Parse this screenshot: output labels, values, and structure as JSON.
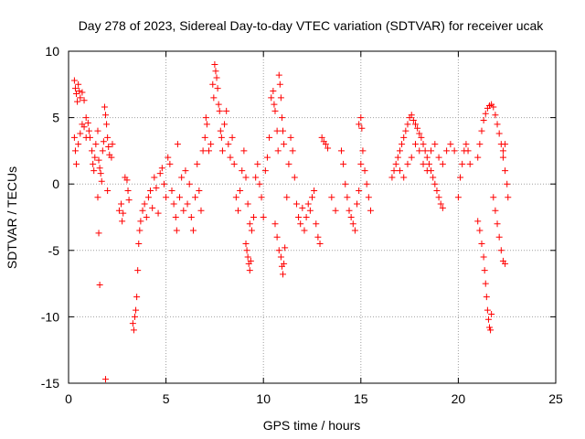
{
  "chart_data": {
    "type": "scatter",
    "title": "Day 278 of 2023, Sidereal Day-to-day VTEC variation (SDTVAR) for receiver ucak",
    "xlabel": "GPS time / hours",
    "ylabel": "SDTVAR / TECUs",
    "xlim": [
      0,
      25
    ],
    "ylim": [
      -15,
      10
    ],
    "x_ticks": [
      0,
      5,
      10,
      15,
      20,
      25
    ],
    "y_ticks": [
      -15,
      -10,
      -5,
      0,
      5,
      10
    ],
    "grid": true,
    "marker": "+",
    "series_color": "#ff0000",
    "series": [
      {
        "name": "SDTVAR",
        "points": [
          [
            0.3,
            7.8
          ],
          [
            0.35,
            7.2
          ],
          [
            0.4,
            6.8
          ],
          [
            0.45,
            6.2
          ],
          [
            0.5,
            7.5
          ],
          [
            0.55,
            7.0
          ],
          [
            0.6,
            6.5
          ],
          [
            0.7,
            6.9
          ],
          [
            0.8,
            6.3
          ],
          [
            0.9,
            5.0
          ],
          [
            0.3,
            3.5
          ],
          [
            0.35,
            2.5
          ],
          [
            0.4,
            1.5
          ],
          [
            0.5,
            3.0
          ],
          [
            0.6,
            3.8
          ],
          [
            0.7,
            4.5
          ],
          [
            0.8,
            4.3
          ],
          [
            0.9,
            3.5
          ],
          [
            1.0,
            4.6
          ],
          [
            1.05,
            4.0
          ],
          [
            1.1,
            3.5
          ],
          [
            1.2,
            2.5
          ],
          [
            1.25,
            1.5
          ],
          [
            1.3,
            1.0
          ],
          [
            1.35,
            2.0
          ],
          [
            1.4,
            3.0
          ],
          [
            1.5,
            4.0
          ],
          [
            1.55,
            1.8
          ],
          [
            1.6,
            1.2
          ],
          [
            1.65,
            0.8
          ],
          [
            1.7,
            0.2
          ],
          [
            1.75,
            2.5
          ],
          [
            1.8,
            3.2
          ],
          [
            1.85,
            5.8
          ],
          [
            1.9,
            5.2
          ],
          [
            1.95,
            4.5
          ],
          [
            2.0,
            3.5
          ],
          [
            2.05,
            2.8
          ],
          [
            2.1,
            2.2
          ],
          [
            2.2,
            2.0
          ],
          [
            2.25,
            3.0
          ],
          [
            1.5,
            -1.0
          ],
          [
            1.55,
            -3.7
          ],
          [
            1.6,
            -7.6
          ],
          [
            1.9,
            -14.7
          ],
          [
            2.0,
            -0.5
          ],
          [
            2.6,
            -2.0
          ],
          [
            2.7,
            -1.5
          ],
          [
            2.75,
            -2.8
          ],
          [
            2.8,
            -2.2
          ],
          [
            2.9,
            0.5
          ],
          [
            3.0,
            0.3
          ],
          [
            3.05,
            -0.5
          ],
          [
            3.1,
            -1.2
          ],
          [
            3.3,
            -10.5
          ],
          [
            3.35,
            -11.0
          ],
          [
            3.4,
            -10.0
          ],
          [
            3.45,
            -9.5
          ],
          [
            3.5,
            -8.5
          ],
          [
            3.55,
            -6.5
          ],
          [
            3.6,
            -4.5
          ],
          [
            3.65,
            -3.5
          ],
          [
            3.7,
            -2.8
          ],
          [
            3.8,
            -2.0
          ],
          [
            3.9,
            -1.5
          ],
          [
            4.0,
            -2.5
          ],
          [
            4.1,
            -1.0
          ],
          [
            4.2,
            -0.5
          ],
          [
            4.3,
            -1.8
          ],
          [
            4.4,
            0.5
          ],
          [
            4.5,
            -0.3
          ],
          [
            4.6,
            -2.2
          ],
          [
            4.7,
            0.8
          ],
          [
            4.8,
            1.2
          ],
          [
            4.9,
            0.0
          ],
          [
            5.0,
            -1.0
          ],
          [
            5.1,
            2.0
          ],
          [
            5.2,
            1.5
          ],
          [
            5.3,
            -0.5
          ],
          [
            5.4,
            -1.5
          ],
          [
            5.5,
            -2.5
          ],
          [
            5.55,
            -3.5
          ],
          [
            5.6,
            3.0
          ],
          [
            5.7,
            -1.0
          ],
          [
            5.8,
            0.5
          ],
          [
            5.9,
            -2.0
          ],
          [
            6.0,
            1.0
          ],
          [
            6.1,
            -1.5
          ],
          [
            6.2,
            0.0
          ],
          [
            6.3,
            -2.5
          ],
          [
            6.4,
            -3.5
          ],
          [
            6.5,
            -1.0
          ],
          [
            6.6,
            1.5
          ],
          [
            6.7,
            -0.5
          ],
          [
            6.8,
            -2.0
          ],
          [
            6.9,
            2.5
          ],
          [
            7.0,
            3.5
          ],
          [
            7.05,
            5.0
          ],
          [
            7.1,
            4.5
          ],
          [
            7.2,
            2.5
          ],
          [
            7.3,
            3.0
          ],
          [
            7.4,
            7.5
          ],
          [
            7.45,
            6.5
          ],
          [
            7.5,
            9.0
          ],
          [
            7.55,
            8.5
          ],
          [
            7.6,
            8.0
          ],
          [
            7.65,
            7.2
          ],
          [
            7.7,
            6.0
          ],
          [
            7.75,
            5.5
          ],
          [
            7.8,
            4.0
          ],
          [
            7.85,
            3.5
          ],
          [
            7.9,
            2.5
          ],
          [
            8.0,
            4.5
          ],
          [
            8.1,
            5.5
          ],
          [
            8.2,
            3.0
          ],
          [
            8.3,
            2.0
          ],
          [
            8.4,
            3.5
          ],
          [
            8.5,
            1.5
          ],
          [
            8.6,
            -1.0
          ],
          [
            8.7,
            -2.0
          ],
          [
            8.8,
            -0.5
          ],
          [
            8.9,
            1.0
          ],
          [
            9.0,
            2.5
          ],
          [
            9.1,
            0.5
          ],
          [
            9.2,
            -1.5
          ],
          [
            9.3,
            -3.0
          ],
          [
            9.4,
            -3.5
          ],
          [
            9.5,
            -2.5
          ],
          [
            9.6,
            0.5
          ],
          [
            9.7,
            1.5
          ],
          [
            9.8,
            0.0
          ],
          [
            9.1,
            -4.5
          ],
          [
            9.15,
            -5.0
          ],
          [
            9.2,
            -5.5
          ],
          [
            9.25,
            -6.0
          ],
          [
            9.3,
            -6.5
          ],
          [
            9.35,
            -5.8
          ],
          [
            9.9,
            -1.0
          ],
          [
            10.0,
            -2.5
          ],
          [
            10.1,
            1.0
          ],
          [
            10.2,
            2.0
          ],
          [
            10.3,
            3.5
          ],
          [
            10.4,
            6.5
          ],
          [
            10.5,
            7.0
          ],
          [
            10.55,
            6.0
          ],
          [
            10.6,
            5.5
          ],
          [
            10.7,
            4.0
          ],
          [
            10.75,
            2.5
          ],
          [
            10.8,
            8.2
          ],
          [
            10.85,
            7.5
          ],
          [
            10.9,
            6.5
          ],
          [
            10.95,
            5.0
          ],
          [
            11.0,
            4.0
          ],
          [
            11.05,
            3.0
          ],
          [
            10.6,
            -3.0
          ],
          [
            10.7,
            -4.0
          ],
          [
            10.8,
            -5.0
          ],
          [
            10.9,
            -5.5
          ],
          [
            10.95,
            -6.2
          ],
          [
            11.0,
            -6.8
          ],
          [
            11.05,
            -6.0
          ],
          [
            11.1,
            -4.8
          ],
          [
            11.2,
            -1.0
          ],
          [
            11.3,
            1.5
          ],
          [
            11.4,
            3.5
          ],
          [
            11.5,
            2.5
          ],
          [
            11.6,
            0.5
          ],
          [
            11.7,
            -1.5
          ],
          [
            11.8,
            -2.5
          ],
          [
            11.9,
            -3.0
          ],
          [
            12.0,
            -1.8
          ],
          [
            12.1,
            -3.5
          ],
          [
            12.2,
            -2.5
          ],
          [
            12.3,
            -1.5
          ],
          [
            12.4,
            -2.0
          ],
          [
            12.5,
            -1.0
          ],
          [
            12.6,
            -0.5
          ],
          [
            12.7,
            -3.0
          ],
          [
            12.8,
            -4.0
          ],
          [
            12.9,
            -4.5
          ],
          [
            13.0,
            3.5
          ],
          [
            13.1,
            3.2
          ],
          [
            13.2,
            3.0
          ],
          [
            13.3,
            2.7
          ],
          [
            13.5,
            -1.0
          ],
          [
            13.7,
            -2.0
          ],
          [
            14.0,
            2.5
          ],
          [
            14.1,
            1.5
          ],
          [
            14.2,
            0.0
          ],
          [
            14.3,
            -1.0
          ],
          [
            14.4,
            -2.0
          ],
          [
            14.5,
            -2.5
          ],
          [
            14.6,
            -3.0
          ],
          [
            14.7,
            -3.5
          ],
          [
            14.8,
            -1.5
          ],
          [
            14.9,
            -0.5
          ],
          [
            15.0,
            1.5
          ],
          [
            15.1,
            2.5
          ],
          [
            15.2,
            1.0
          ],
          [
            15.3,
            0.0
          ],
          [
            15.4,
            -1.0
          ],
          [
            15.5,
            -2.0
          ],
          [
            14.9,
            4.5
          ],
          [
            15.0,
            5.0
          ],
          [
            15.05,
            4.2
          ],
          [
            16.6,
            0.5
          ],
          [
            16.7,
            1.0
          ],
          [
            16.8,
            1.5
          ],
          [
            16.9,
            2.0
          ],
          [
            17.0,
            2.5
          ],
          [
            17.1,
            3.0
          ],
          [
            17.2,
            3.5
          ],
          [
            17.3,
            4.0
          ],
          [
            17.4,
            4.5
          ],
          [
            17.5,
            5.0
          ],
          [
            17.6,
            5.2
          ],
          [
            17.7,
            4.8
          ],
          [
            17.8,
            4.5
          ],
          [
            17.9,
            4.2
          ],
          [
            18.0,
            3.8
          ],
          [
            18.1,
            3.5
          ],
          [
            18.2,
            3.0
          ],
          [
            18.3,
            2.5
          ],
          [
            18.4,
            2.0
          ],
          [
            18.5,
            1.5
          ],
          [
            18.6,
            1.0
          ],
          [
            18.7,
            0.5
          ],
          [
            18.8,
            0.0
          ],
          [
            18.9,
            -0.5
          ],
          [
            19.0,
            -1.0
          ],
          [
            19.1,
            -1.5
          ],
          [
            19.2,
            -1.8
          ],
          [
            17.0,
            1.0
          ],
          [
            17.2,
            0.5
          ],
          [
            17.4,
            1.5
          ],
          [
            17.6,
            2.0
          ],
          [
            17.8,
            3.0
          ],
          [
            18.0,
            2.5
          ],
          [
            18.2,
            1.5
          ],
          [
            18.4,
            1.0
          ],
          [
            18.6,
            2.5
          ],
          [
            18.8,
            3.0
          ],
          [
            19.0,
            2.0
          ],
          [
            19.2,
            1.5
          ],
          [
            19.4,
            2.5
          ],
          [
            19.6,
            3.0
          ],
          [
            19.8,
            2.5
          ],
          [
            20.0,
            -1.0
          ],
          [
            20.1,
            0.5
          ],
          [
            20.2,
            1.5
          ],
          [
            20.3,
            2.5
          ],
          [
            20.4,
            3.0
          ],
          [
            20.5,
            2.5
          ],
          [
            20.6,
            1.5
          ],
          [
            21.0,
            2.0
          ],
          [
            21.1,
            3.0
          ],
          [
            21.2,
            4.0
          ],
          [
            21.3,
            4.8
          ],
          [
            21.4,
            5.3
          ],
          [
            21.5,
            5.7
          ],
          [
            21.6,
            5.9
          ],
          [
            21.7,
            6.0
          ],
          [
            21.8,
            5.8
          ],
          [
            21.9,
            5.2
          ],
          [
            22.0,
            4.5
          ],
          [
            22.1,
            3.8
          ],
          [
            22.2,
            3.0
          ],
          [
            22.3,
            2.0
          ],
          [
            22.4,
            1.0
          ],
          [
            22.5,
            0.0
          ],
          [
            22.55,
            -1.0
          ],
          [
            21.0,
            -2.8
          ],
          [
            21.1,
            -3.5
          ],
          [
            21.2,
            -4.5
          ],
          [
            21.3,
            -5.5
          ],
          [
            21.35,
            -6.5
          ],
          [
            21.4,
            -7.5
          ],
          [
            21.45,
            -8.5
          ],
          [
            21.5,
            -9.5
          ],
          [
            21.55,
            -10.2
          ],
          [
            21.6,
            -10.8
          ],
          [
            21.65,
            -11.0
          ],
          [
            21.7,
            -9.8
          ],
          [
            21.8,
            -1.0
          ],
          [
            21.9,
            -2.0
          ],
          [
            22.0,
            -3.0
          ],
          [
            22.1,
            -4.0
          ],
          [
            22.2,
            -5.0
          ],
          [
            22.3,
            -5.8
          ],
          [
            22.4,
            -6.0
          ],
          [
            22.3,
            2.5
          ],
          [
            22.4,
            3.0
          ]
        ]
      }
    ]
  }
}
